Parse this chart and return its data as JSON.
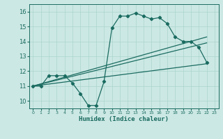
{
  "title": "",
  "xlabel": "Humidex (Indice chaleur)",
  "ylabel": "",
  "bg_color": "#cce8e4",
  "line_color": "#1a6b60",
  "grid_color": "#aad4ce",
  "xlim": [
    -0.5,
    23.5
  ],
  "ylim": [
    9.5,
    16.5
  ],
  "xticks": [
    0,
    1,
    2,
    3,
    4,
    5,
    6,
    7,
    8,
    9,
    10,
    11,
    12,
    13,
    14,
    15,
    16,
    17,
    18,
    19,
    20,
    21,
    22,
    23
  ],
  "yticks": [
    10,
    11,
    12,
    13,
    14,
    15,
    16
  ],
  "curve1_x": [
    0,
    1,
    2,
    3,
    4,
    5,
    6,
    7,
    8,
    9,
    10,
    11,
    12,
    13,
    14,
    15,
    16,
    17,
    18,
    19,
    20,
    21,
    22
  ],
  "curve1_y": [
    11.0,
    11.0,
    11.7,
    11.7,
    11.7,
    11.2,
    10.5,
    9.7,
    9.7,
    11.3,
    14.9,
    15.7,
    15.7,
    15.9,
    15.7,
    15.5,
    15.6,
    15.2,
    14.3,
    14.0,
    14.0,
    13.6,
    12.6
  ],
  "curve2_x": [
    0,
    22
  ],
  "curve2_y": [
    11.0,
    14.3
  ],
  "curve3_x": [
    0,
    22
  ],
  "curve3_y": [
    11.0,
    13.9
  ],
  "curve4_x": [
    0,
    22
  ],
  "curve4_y": [
    11.0,
    12.5
  ]
}
